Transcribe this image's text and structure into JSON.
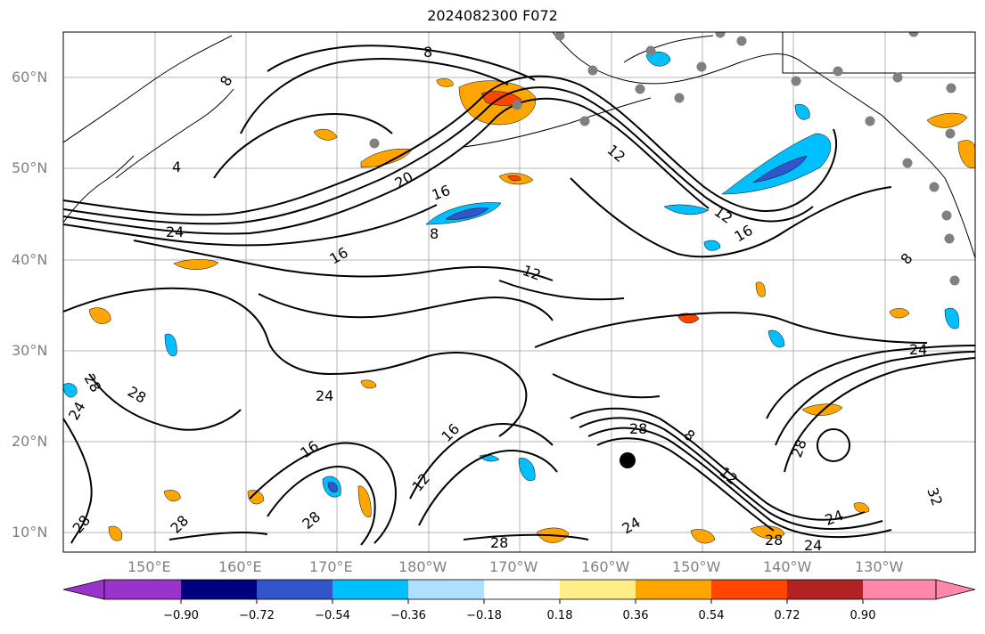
{
  "title": "2024082300 F072",
  "map": {
    "lat_labels": [
      "60°N",
      "50°N",
      "40°N",
      "30°N",
      "20°N",
      "10°N"
    ],
    "lon_labels": [
      "150°E",
      "160°E",
      "170°E",
      "180°W",
      "170°W",
      "160°W",
      "150°W",
      "140°W",
      "130°W"
    ],
    "contour_labels": [
      "8",
      "12",
      "8",
      "4",
      "24",
      "20",
      "16",
      "8",
      "12",
      "16",
      "12",
      "16",
      "8",
      "28",
      "28",
      "24",
      "24",
      "16",
      "16",
      "12",
      "28",
      "28",
      "28",
      "28",
      "24",
      "28",
      "24",
      "8",
      "12",
      "28",
      "32",
      "24",
      "28",
      "24"
    ],
    "colors": {
      "land_line": "#000000",
      "grid": "#b3b3b3",
      "station": "#808080"
    }
  },
  "colorbar": {
    "labels": [
      "−0.90",
      "−0.72",
      "−0.54",
      "−0.36",
      "−0.18",
      "0.18",
      "0.36",
      "0.54",
      "0.72",
      "0.90"
    ],
    "colors": [
      "#9933cc",
      "#000080",
      "#3355cc",
      "#00bfff",
      "#b0e0ff",
      "#ffffff",
      "#ffee88",
      "#ffa500",
      "#ff4500",
      "#b22222",
      "#ff88aa"
    ]
  }
}
